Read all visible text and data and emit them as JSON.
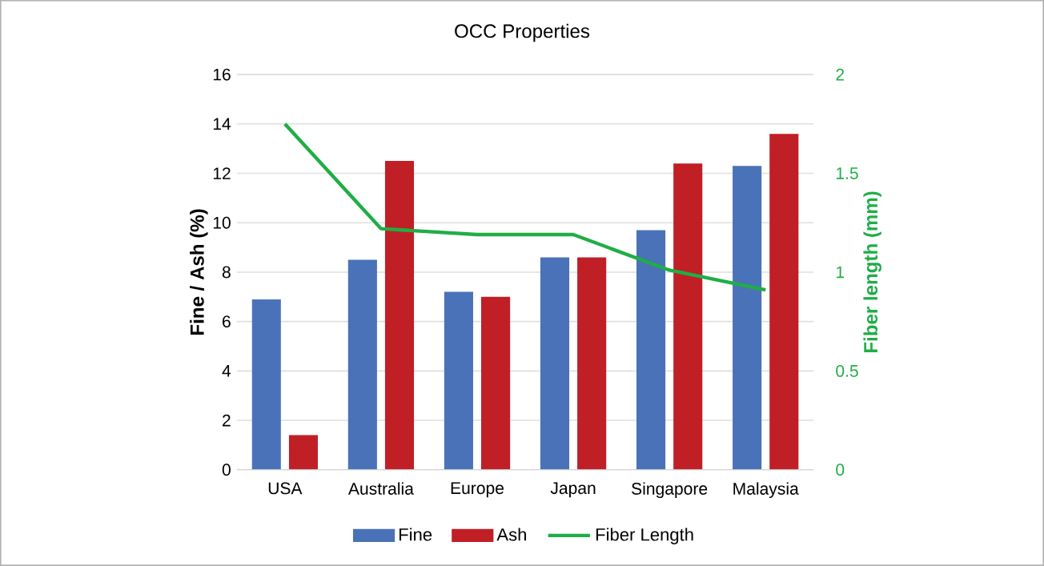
{
  "chart_data": {
    "type": "bar",
    "title": "OCC Properties",
    "categories": [
      "USA",
      "Australia",
      "Europe",
      "Japan",
      "Singapore",
      "Malaysia"
    ],
    "series": [
      {
        "name": "Fine",
        "color": "#4a72b8",
        "values": [
          6.9,
          8.5,
          7.2,
          8.6,
          9.7,
          12.3
        ]
      },
      {
        "name": "Ash",
        "color": "#c01f25",
        "values": [
          1.4,
          12.5,
          7.0,
          8.6,
          12.4,
          13.6
        ]
      },
      {
        "name": "Fiber Length",
        "type": "line",
        "axis": "y2",
        "color": "#1fae46",
        "values": [
          1.75,
          1.22,
          1.19,
          1.19,
          1.01,
          0.91
        ]
      }
    ],
    "ylabel": "Fine / Ash (%)",
    "y2label": "Fiber length (mm)",
    "ylim": [
      0,
      16
    ],
    "yticks": [
      0,
      2,
      4,
      6,
      8,
      10,
      12,
      14,
      16
    ],
    "y2lim": [
      0,
      2
    ],
    "y2ticks": [
      0,
      0.5,
      1,
      1.5,
      2
    ],
    "grid": "y",
    "legend": "bottom"
  }
}
